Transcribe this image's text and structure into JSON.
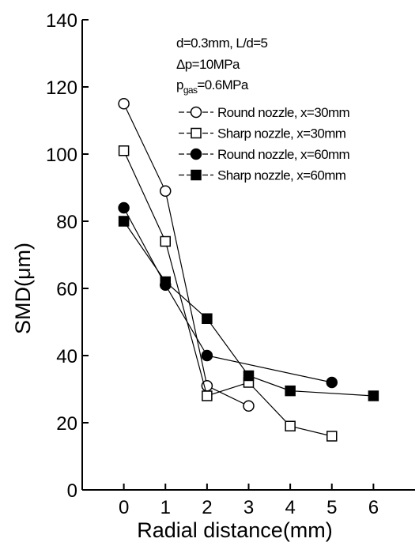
{
  "chart_data": {
    "type": "line",
    "xlabel": "Radial distance(mm)",
    "ylabel": "SMD(μm)",
    "xlim": [
      -1,
      7
    ],
    "ylim": [
      0,
      140
    ],
    "xticks": [
      0,
      1,
      2,
      3,
      4,
      5,
      6
    ],
    "yticks": [
      0,
      20,
      40,
      60,
      80,
      100,
      120,
      140
    ],
    "legend_position": "top-right",
    "grid": false,
    "annotations": {
      "line1": "d=0.3mm, L/d=5",
      "line2": "Δp=10MPa",
      "line3_main": "p",
      "line3_sub": "gas",
      "line3_rest": "=0.6MPa"
    },
    "series": [
      {
        "name": "Round nozzle, x=30mm",
        "marker": "circle-open",
        "x": [
          0,
          1,
          2,
          3
        ],
        "y": [
          115,
          89,
          31,
          25
        ]
      },
      {
        "name": "Sharp nozzle,  x=30mm",
        "marker": "square-open",
        "x": [
          0,
          1,
          2,
          3,
          4,
          5
        ],
        "y": [
          101,
          74,
          28,
          32,
          19,
          16
        ]
      },
      {
        "name": "Round nozzle, x=60mm",
        "marker": "circle-filled",
        "x": [
          0,
          1,
          2,
          5
        ],
        "y": [
          84,
          61,
          40,
          32
        ]
      },
      {
        "name": "Sharp nozzle,  x=60mm",
        "marker": "square-filled",
        "x": [
          0,
          1,
          2,
          3,
          4,
          6
        ],
        "y": [
          80,
          62,
          51,
          34,
          29.5,
          28
        ]
      }
    ]
  }
}
